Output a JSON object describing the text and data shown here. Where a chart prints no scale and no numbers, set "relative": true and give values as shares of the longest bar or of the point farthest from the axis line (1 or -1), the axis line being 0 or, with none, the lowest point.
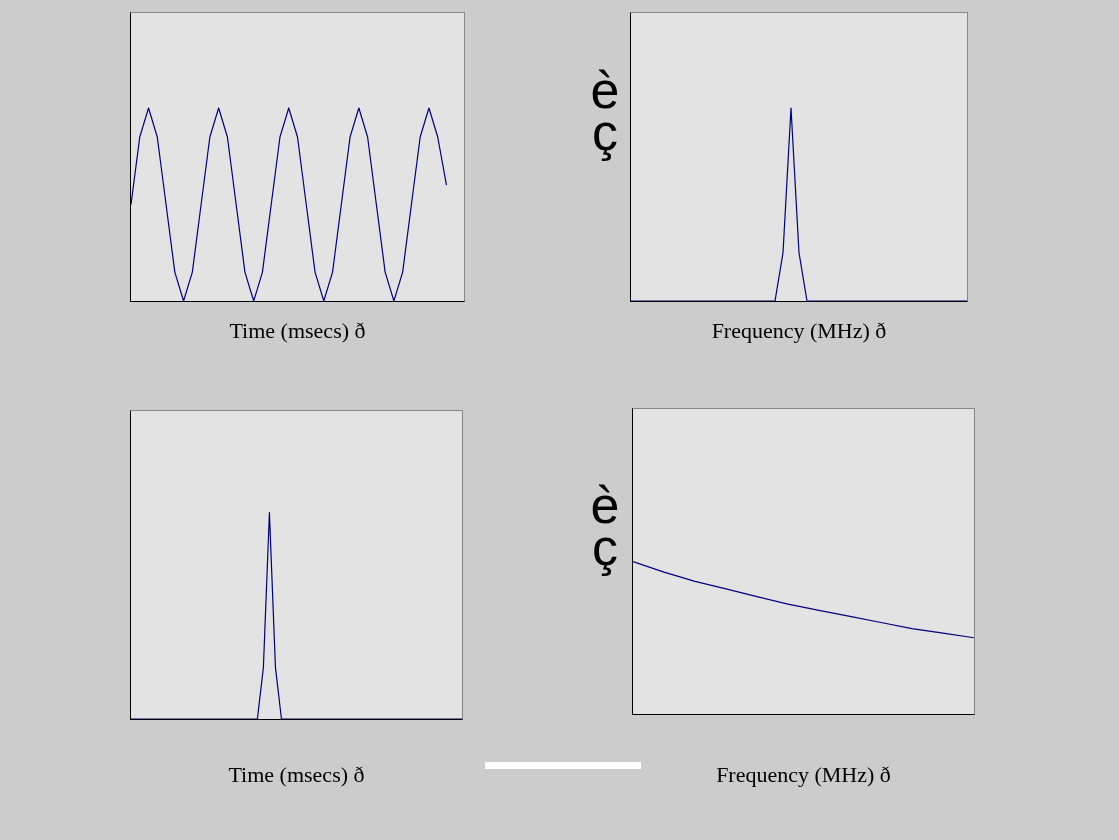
{
  "chart_data": [
    {
      "type": "line",
      "relative": true,
      "xlabel": "Time (msecs) ð",
      "annotations": [
        "è",
        "ç"
      ],
      "categories": [
        null,
        null,
        null,
        null,
        null,
        null,
        null,
        null,
        null,
        null,
        null,
        null,
        null,
        null,
        null,
        null,
        null,
        null,
        null,
        null,
        null,
        null,
        null,
        null,
        null,
        null,
        null,
        null,
        null,
        null,
        null,
        null,
        null,
        null,
        null,
        null,
        null,
        null,
        null
      ],
      "series": [
        {
          "color": "#000080",
          "values": [
            0.5,
            0.85,
            1,
            0.85,
            0.5,
            0.15,
            0,
            0.15,
            0.5,
            0.85,
            1,
            0.85,
            0.5,
            0.15,
            0,
            0.15,
            0.5,
            0.85,
            1,
            0.85,
            0.5,
            0.15,
            0,
            0.15,
            0.5,
            0.85,
            1,
            0.85,
            0.5,
            0.15,
            0,
            0.15,
            0.5,
            0.85,
            1,
            0.85,
            0.6,
            null,
            null
          ]
        }
      ]
    },
    {
      "type": "line",
      "relative": true,
      "xlabel": "Frequency (MHz) ð",
      "categories": [
        null,
        null,
        null,
        null,
        null,
        null,
        null,
        null,
        null,
        null,
        null,
        null,
        null,
        null,
        null,
        null,
        null,
        null,
        null,
        null,
        null,
        null,
        null,
        null,
        null,
        null,
        null,
        null,
        null,
        null,
        null,
        null,
        null,
        null,
        null,
        null,
        null,
        null,
        null,
        null,
        null,
        null,
        null
      ],
      "series": [
        {
          "color": "#000080",
          "values": [
            0,
            0,
            0,
            0,
            0,
            0,
            0,
            0,
            0,
            0,
            0,
            0,
            0,
            0,
            0,
            0,
            0,
            0,
            0,
            0.25,
            1,
            0.25,
            0,
            0,
            0,
            0,
            0,
            0,
            0,
            0,
            0,
            0,
            0,
            0,
            0,
            0,
            0,
            0,
            0,
            0,
            0,
            0,
            0
          ]
        }
      ]
    },
    {
      "type": "line",
      "relative": true,
      "xlabel": "Time (msecs) ð",
      "annotations": [
        "è",
        "ç"
      ],
      "categories": [
        null,
        null,
        null,
        null,
        null,
        null,
        null,
        null,
        null,
        null,
        null,
        null,
        null,
        null,
        null,
        null,
        null,
        null,
        null,
        null,
        null,
        null,
        null,
        null,
        null,
        null,
        null,
        null,
        null,
        null,
        null,
        null,
        null,
        null,
        null,
        null,
        null,
        null,
        null,
        null,
        null,
        null,
        null,
        null,
        null,
        null,
        null,
        null,
        null,
        null,
        null,
        null,
        null,
        null,
        null,
        null
      ],
      "series": [
        {
          "color": "#000080",
          "values": [
            0,
            0,
            0,
            0,
            0,
            0,
            0,
            0,
            0,
            0,
            0,
            0,
            0,
            0,
            0,
            0,
            0,
            0,
            0,
            0,
            0,
            0,
            0.25,
            1,
            0.25,
            0,
            0,
            0,
            0,
            0,
            0,
            0,
            0,
            0,
            0,
            0,
            0,
            0,
            0,
            0,
            0,
            0,
            0,
            0,
            0,
            0,
            0,
            0,
            0,
            0,
            0,
            0,
            0,
            0,
            0,
            0
          ]
        }
      ]
    },
    {
      "type": "line",
      "relative": true,
      "xlabel": "Frequency (MHz) ð",
      "categories": [
        null,
        null,
        null,
        null,
        null,
        null,
        null,
        null,
        null,
        null,
        null,
        null
      ],
      "series": [
        {
          "color": "#000080",
          "values": [
            1,
            0.93,
            0.87,
            0.82,
            0.77,
            0.72,
            0.68,
            0.64,
            0.6,
            0.56,
            0.53,
            0.5
          ]
        }
      ]
    }
  ]
}
